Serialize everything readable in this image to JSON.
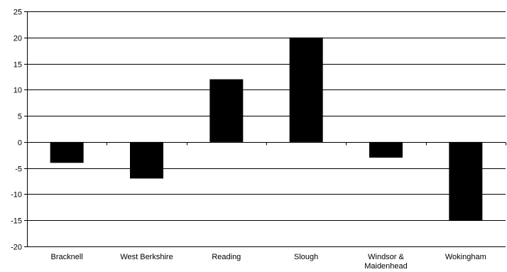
{
  "chart_data": {
    "type": "bar",
    "title": "",
    "xlabel": "",
    "ylabel": "",
    "categories": [
      [
        "Bracknell"
      ],
      [
        "West Berkshire"
      ],
      [
        "Reading"
      ],
      [
        "Slough"
      ],
      [
        "Windsor &",
        "Maidenhead"
      ],
      [
        "Wokingham"
      ]
    ],
    "values": [
      -4,
      -7,
      12,
      20,
      -3,
      -15
    ],
    "ylim": [
      -20,
      25
    ],
    "yticks": [
      -20,
      -15,
      -10,
      -5,
      0,
      5,
      10,
      15,
      20,
      25
    ],
    "grid": true,
    "legend": "none",
    "colors": {
      "bar": "#000000",
      "grid": "#000000",
      "axis": "#000000",
      "background": "#ffffff"
    }
  }
}
